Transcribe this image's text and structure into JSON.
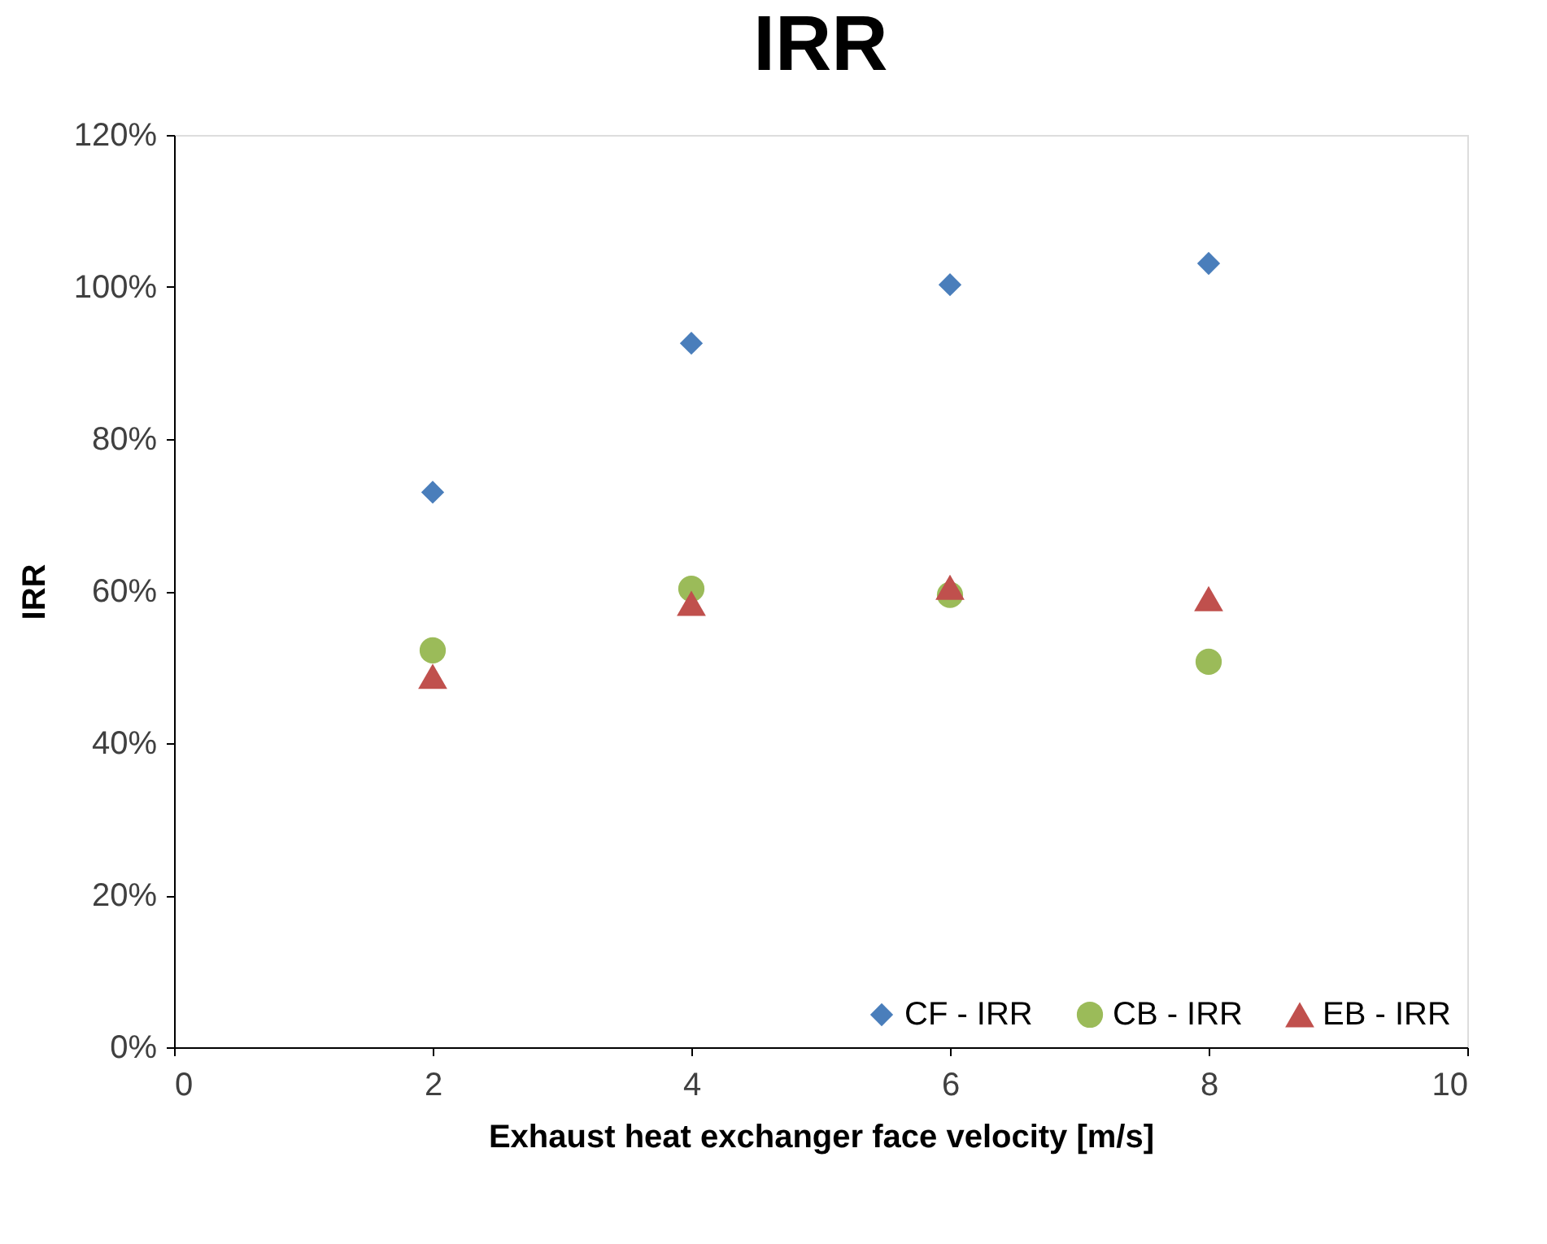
{
  "chart_data": {
    "type": "scatter",
    "title": "IRR",
    "xlabel": "Exhaust heat exchanger face velocity [m/s]",
    "ylabel": "IRR",
    "x": [
      2,
      4,
      6,
      8
    ],
    "series": [
      {
        "name": "CF - IRR",
        "color": "#4a7ebb",
        "marker": "diamond",
        "values": [
          73,
          92.6,
          100.3,
          103.1
        ]
      },
      {
        "name": "CB - IRR",
        "color": "#9bbb59",
        "marker": "circle",
        "values": [
          52.2,
          60.3,
          59.5,
          50.7
        ]
      },
      {
        "name": "EB - IRR",
        "color": "#c0504d",
        "marker": "triangle",
        "values": [
          48.8,
          58.4,
          60.5,
          59.0
        ]
      }
    ],
    "xlim": [
      0,
      10
    ],
    "xticks": [
      0,
      2,
      4,
      6,
      8,
      10
    ],
    "ylim": [
      0,
      120
    ],
    "yticks": [
      {
        "value": 0,
        "label": "0%"
      },
      {
        "value": 20,
        "label": "20%"
      },
      {
        "value": 40,
        "label": "40%"
      },
      {
        "value": 60,
        "label": "60%"
      },
      {
        "value": 80,
        "label": "80%"
      },
      {
        "value": 100,
        "label": "100%"
      },
      {
        "value": 120,
        "label": "120%"
      }
    ],
    "grid": false,
    "legend": "bottom right"
  }
}
